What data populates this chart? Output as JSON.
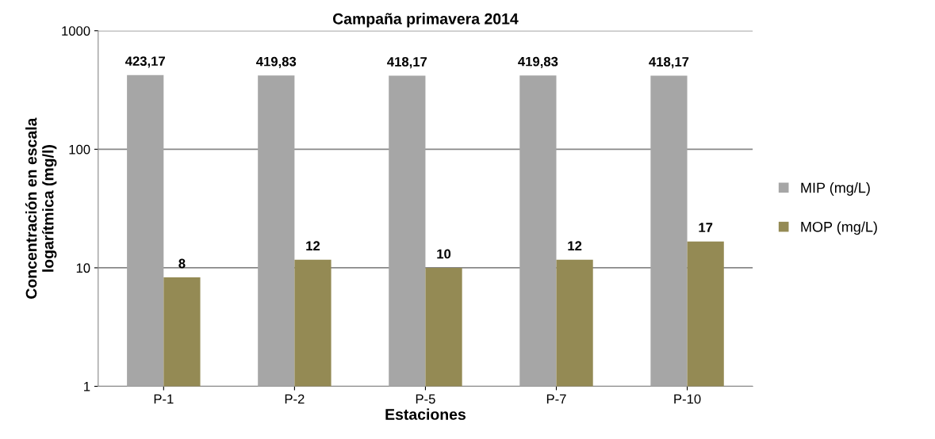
{
  "chart_data": {
    "type": "bar",
    "title": "Campaña primavera 2014",
    "xlabel": "Estaciones",
    "ylabel": "Concentración en escala\nlogarítmica (mg/l)",
    "categories": [
      "P-1",
      "P-2",
      "P-5",
      "P-7",
      "P-10"
    ],
    "series": [
      {
        "name": "MIP (mg/L)",
        "color": "#a6a6a6",
        "values": [
          423.17,
          419.83,
          418.17,
          419.83,
          418.17
        ],
        "value_labels": [
          "423,17",
          "419,83",
          "418,17",
          "419,83",
          "418,17"
        ]
      },
      {
        "name": "MOP (mg/L)",
        "color": "#948a54",
        "values": [
          8.3,
          11.7,
          10,
          11.7,
          16.7
        ],
        "value_labels": [
          "8",
          "12",
          "10",
          "12",
          "17"
        ]
      }
    ],
    "log": "y",
    "ylim": [
      1,
      1000
    ],
    "yticks": [
      1,
      10,
      100,
      1000
    ],
    "grid": "y",
    "legend": "right"
  }
}
